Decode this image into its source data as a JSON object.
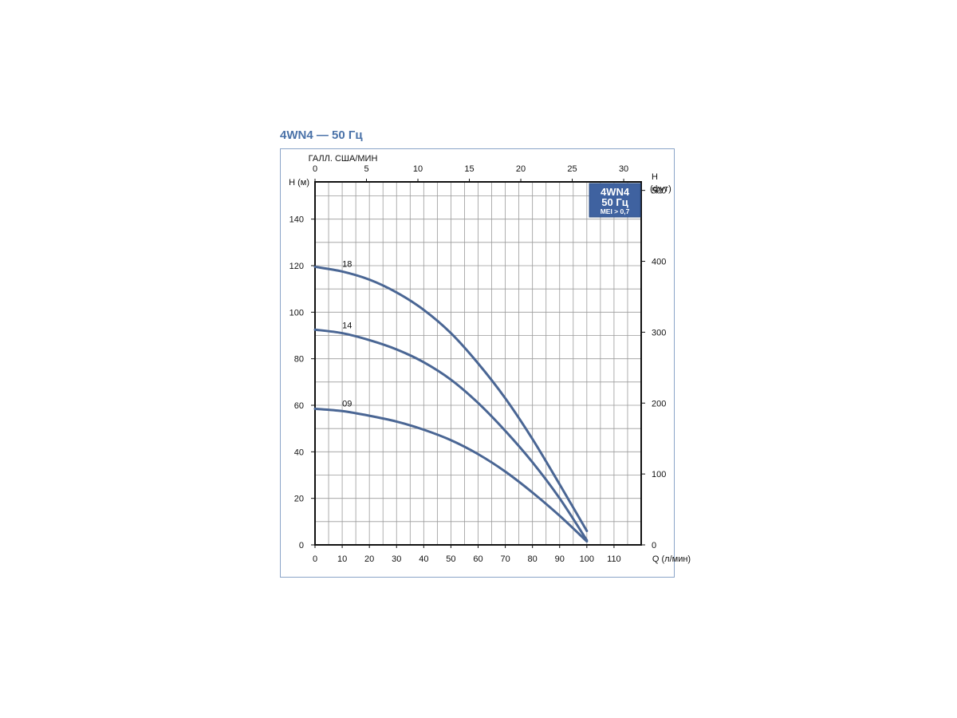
{
  "chart_title": "4WN4 — 50 Гц",
  "chart_data": {
    "type": "line",
    "x_label": "Q (л/мин)",
    "x_top_label": "ГАЛЛ. США/МИН",
    "y_label": "H (м)",
    "y2_label_top": "H",
    "y2_label_bottom": "(фут)",
    "xlim": [
      0,
      120
    ],
    "x_top_lim": [
      0,
      31.7
    ],
    "ylim": [
      0,
      156
    ],
    "y2lim": [
      0,
      512
    ],
    "x_ticks": [
      0,
      10,
      20,
      30,
      40,
      50,
      60,
      70,
      80,
      90,
      100,
      110
    ],
    "x_top_ticks": [
      0,
      5,
      10,
      15,
      20,
      25,
      30
    ],
    "y_ticks": [
      0,
      20,
      40,
      60,
      80,
      100,
      120,
      140
    ],
    "y2_ticks": [
      0,
      100,
      200,
      300,
      400,
      500
    ],
    "grid": true,
    "badge": {
      "line1": "4WN4",
      "line2": "50 Гц",
      "line3": "MEI > 0,7"
    },
    "series": [
      {
        "name": "18",
        "x": [
          0,
          10,
          20,
          30,
          40,
          50,
          60,
          70,
          80,
          90,
          100
        ],
        "y": [
          119.5,
          117.5,
          114,
          108.5,
          101,
          91,
          78,
          63,
          45.5,
          26,
          6
        ]
      },
      {
        "name": "14",
        "x": [
          0,
          10,
          20,
          30,
          40,
          50,
          60,
          70,
          80,
          90,
          100
        ],
        "y": [
          92.5,
          91,
          88,
          84,
          78.5,
          71,
          61,
          49,
          35.5,
          20,
          2
        ]
      },
      {
        "name": "09",
        "x": [
          0,
          10,
          20,
          30,
          40,
          50,
          60,
          70,
          80,
          90,
          100
        ],
        "y": [
          58.5,
          57.5,
          55.5,
          53,
          49.5,
          45,
          39,
          31.5,
          22.5,
          12.5,
          1.5
        ]
      }
    ],
    "series_color": "#4a6694"
  }
}
